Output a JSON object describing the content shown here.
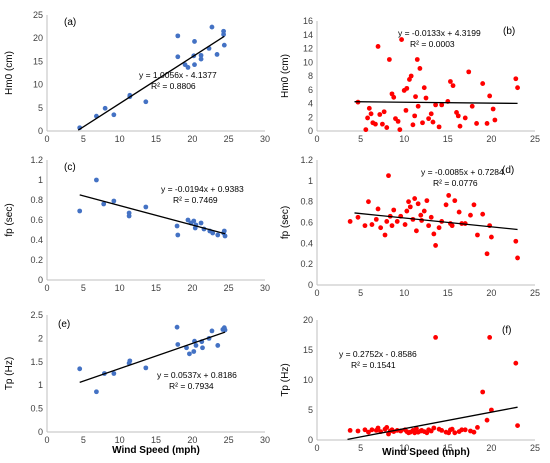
{
  "chart_data": [
    {
      "id": "a",
      "type": "scatter",
      "panel_label": "(a)",
      "ylabel": "Hm0 (cm)",
      "xlabel": "",
      "xlim": [
        0,
        30
      ],
      "ylim": [
        0,
        25
      ],
      "xticks": [
        0,
        5,
        10,
        15,
        20,
        25,
        30
      ],
      "yticks": [
        0,
        5,
        10,
        15,
        20,
        25
      ],
      "color": "#4472c4",
      "equation": "y = 1.0056x - 4.1377",
      "r2": "R² = 0.8806",
      "trend": {
        "slope": 1.0056,
        "intercept": -4.1377,
        "x_range": [
          4.3,
          24.4
        ]
      },
      "points": [
        [
          4.5,
          0.7
        ],
        [
          6.8,
          3.2
        ],
        [
          8.0,
          4.9
        ],
        [
          9.2,
          3.5
        ],
        [
          11.4,
          7.7
        ],
        [
          11.4,
          7.4
        ],
        [
          13.6,
          6.3
        ],
        [
          18.0,
          20.5
        ],
        [
          18.0,
          16.0
        ],
        [
          19.0,
          14.3
        ],
        [
          19.4,
          13.7
        ],
        [
          20.3,
          14.3
        ],
        [
          20.2,
          16.2
        ],
        [
          20.3,
          19.3
        ],
        [
          21.2,
          16.3
        ],
        [
          21.2,
          15.5
        ],
        [
          22.3,
          17.8
        ],
        [
          22.7,
          22.4
        ],
        [
          23.4,
          16.5
        ],
        [
          24.3,
          21.5
        ],
        [
          24.3,
          20.8
        ],
        [
          24.4,
          18.5
        ]
      ]
    },
    {
      "id": "b",
      "type": "scatter",
      "panel_label": "(b)",
      "ylabel": "Hm0 (cm)",
      "xlabel": "",
      "xlim": [
        0,
        25
      ],
      "ylim": [
        0,
        16
      ],
      "xticks": [
        0,
        5,
        10,
        15,
        20,
        25
      ],
      "yticks": [
        0,
        2,
        4,
        6,
        8,
        10,
        12,
        14,
        16
      ],
      "color": "#ff0000",
      "equation": "y = -0.0133x + 4.3199",
      "r2": "R² = 0.0003",
      "trend": {
        "slope": -0.0133,
        "intercept": 4.3199,
        "x_range": [
          4.3,
          23
        ]
      },
      "points": [
        [
          4.7,
          4.2
        ],
        [
          5.6,
          0.2
        ],
        [
          5.8,
          1.9
        ],
        [
          6.0,
          3.3
        ],
        [
          6.2,
          2.5
        ],
        [
          6.4,
          1.2
        ],
        [
          6.7,
          1.0
        ],
        [
          7.0,
          12.3
        ],
        [
          7.2,
          2.4
        ],
        [
          7.5,
          1.0
        ],
        [
          7.7,
          2.8
        ],
        [
          8.0,
          0.5
        ],
        [
          8.3,
          10.4
        ],
        [
          8.6,
          5.4
        ],
        [
          8.8,
          4.9
        ],
        [
          9.0,
          1.8
        ],
        [
          9.3,
          1.4
        ],
        [
          9.5,
          0.2
        ],
        [
          9.7,
          13.3
        ],
        [
          10.0,
          5.9
        ],
        [
          10.2,
          3.0
        ],
        [
          10.3,
          6.2
        ],
        [
          10.6,
          7.5
        ],
        [
          10.8,
          8.0
        ],
        [
          11.0,
          0.9
        ],
        [
          11.2,
          2.2
        ],
        [
          11.3,
          5.0
        ],
        [
          11.5,
          10.4
        ],
        [
          11.6,
          3.6
        ],
        [
          11.8,
          9.1
        ],
        [
          12.1,
          1.2
        ],
        [
          12.3,
          6.3
        ],
        [
          12.5,
          4.8
        ],
        [
          12.8,
          1.8
        ],
        [
          13.1,
          2.5
        ],
        [
          13.3,
          1.3
        ],
        [
          13.6,
          3.8
        ],
        [
          14.0,
          0.6
        ],
        [
          14.3,
          3.8
        ],
        [
          15.0,
          4.3
        ],
        [
          15.3,
          7.2
        ],
        [
          15.6,
          6.6
        ],
        [
          16.0,
          2.7
        ],
        [
          16.2,
          2.2
        ],
        [
          16.4,
          0.7
        ],
        [
          17.0,
          1.9
        ],
        [
          17.4,
          8.6
        ],
        [
          17.8,
          3.6
        ],
        [
          18.3,
          1.1
        ],
        [
          19.0,
          6.9
        ],
        [
          19.5,
          1.1
        ],
        [
          19.8,
          5.1
        ],
        [
          20.2,
          3.2
        ],
        [
          20.4,
          1.6
        ],
        [
          22.8,
          7.6
        ],
        [
          23.0,
          6.3
        ]
      ]
    },
    {
      "id": "c",
      "type": "scatter",
      "panel_label": "(c)",
      "ylabel": "fp (sec)",
      "xlabel": "",
      "xlim": [
        0,
        30
      ],
      "ylim": [
        0,
        1.2
      ],
      "xticks": [
        0,
        5,
        10,
        15,
        20,
        25,
        30
      ],
      "yticks": [
        0,
        0.2,
        0.4,
        0.6,
        0.8,
        1,
        1.2
      ],
      "color": "#4472c4",
      "equation": "y = -0.0194x + 0.9383",
      "r2": "R² = 0.7469",
      "trend": {
        "slope": -0.0194,
        "intercept": 0.9383,
        "x_range": [
          4.5,
          24.5
        ]
      },
      "points": [
        [
          4.5,
          0.69
        ],
        [
          6.8,
          1.0
        ],
        [
          7.8,
          0.76
        ],
        [
          9.2,
          0.79
        ],
        [
          11.3,
          0.67
        ],
        [
          11.3,
          0.64
        ],
        [
          13.6,
          0.73
        ],
        [
          17.9,
          0.54
        ],
        [
          18.0,
          0.45
        ],
        [
          19.4,
          0.6
        ],
        [
          19.8,
          0.57
        ],
        [
          20.2,
          0.59
        ],
        [
          20.5,
          0.55
        ],
        [
          20.4,
          0.52
        ],
        [
          21.2,
          0.57
        ],
        [
          21.6,
          0.51
        ],
        [
          22.4,
          0.49
        ],
        [
          22.8,
          0.47
        ],
        [
          23.5,
          0.45
        ],
        [
          24.3,
          0.47
        ],
        [
          24.5,
          0.44
        ],
        [
          24.4,
          0.49
        ]
      ]
    },
    {
      "id": "d",
      "type": "scatter",
      "panel_label": "(d)",
      "ylabel": "fp (sec)",
      "xlabel": "",
      "xlim": [
        0,
        25
      ],
      "ylim": [
        0,
        1.2
      ],
      "xticks": [
        0,
        5,
        10,
        15,
        20,
        25
      ],
      "yticks": [
        0,
        0.2,
        0.4,
        0.6,
        0.8,
        1,
        1.2
      ],
      "color": "#ff0000",
      "equation": "y = -0.0085x + 0.7284",
      "r2": "R² = 0.0776",
      "trend": {
        "slope": -0.0085,
        "intercept": 0.7284,
        "x_range": [
          4.3,
          23
        ]
      },
      "points": [
        [
          3.8,
          0.61
        ],
        [
          4.7,
          0.65
        ],
        [
          5.5,
          0.57
        ],
        [
          5.9,
          0.8
        ],
        [
          6.3,
          0.58
        ],
        [
          6.8,
          0.63
        ],
        [
          7.0,
          0.73
        ],
        [
          7.3,
          0.55
        ],
        [
          7.8,
          0.48
        ],
        [
          8.0,
          0.61
        ],
        [
          8.2,
          1.05
        ],
        [
          8.4,
          0.66
        ],
        [
          8.6,
          0.57
        ],
        [
          8.8,
          0.72
        ],
        [
          9.2,
          0.61
        ],
        [
          9.6,
          0.66
        ],
        [
          10.1,
          0.58
        ],
        [
          10.3,
          0.71
        ],
        [
          10.5,
          0.8
        ],
        [
          10.7,
          0.75
        ],
        [
          11.0,
          0.63
        ],
        [
          11.2,
          0.83
        ],
        [
          11.4,
          0.52
        ],
        [
          11.6,
          0.78
        ],
        [
          11.9,
          0.67
        ],
        [
          12.0,
          0.62
        ],
        [
          12.3,
          0.71
        ],
        [
          12.6,
          0.81
        ],
        [
          12.8,
          0.57
        ],
        [
          13.1,
          0.65
        ],
        [
          13.4,
          0.49
        ],
        [
          13.6,
          0.38
        ],
        [
          14.0,
          0.55
        ],
        [
          14.3,
          0.61
        ],
        [
          14.8,
          0.77
        ],
        [
          15.1,
          0.86
        ],
        [
          15.3,
          0.59
        ],
        [
          15.5,
          0.57
        ],
        [
          15.8,
          0.81
        ],
        [
          16.3,
          0.7
        ],
        [
          16.6,
          0.59
        ],
        [
          17.0,
          0.59
        ],
        [
          17.6,
          0.67
        ],
        [
          18.0,
          0.77
        ],
        [
          18.4,
          0.48
        ],
        [
          19.0,
          0.68
        ],
        [
          19.5,
          0.3
        ],
        [
          19.8,
          0.57
        ],
        [
          20.0,
          0.46
        ],
        [
          22.8,
          0.42
        ],
        [
          23.0,
          0.26
        ]
      ]
    },
    {
      "id": "e",
      "type": "scatter",
      "panel_label": "(e)",
      "ylabel": "Tp  (Hz)",
      "xlabel": "Wind Speed (mph)",
      "xlim": [
        0,
        30
      ],
      "ylim": [
        0,
        2.5
      ],
      "xticks": [
        0,
        5,
        10,
        15,
        20,
        25,
        30
      ],
      "yticks": [
        0,
        0.5,
        1,
        1.5,
        2,
        2.5
      ],
      "color": "#4472c4",
      "equation": "y = 0.0537x + 0.8186",
      "r2": "R² = 0.7934",
      "trend": {
        "slope": 0.0537,
        "intercept": 0.8186,
        "x_range": [
          4.5,
          24.5
        ]
      },
      "points": [
        [
          4.5,
          1.35
        ],
        [
          6.8,
          0.86
        ],
        [
          7.9,
          1.25
        ],
        [
          9.2,
          1.25
        ],
        [
          11.3,
          1.47
        ],
        [
          11.4,
          1.52
        ],
        [
          13.6,
          1.37
        ],
        [
          17.9,
          2.24
        ],
        [
          18.0,
          1.87
        ],
        [
          19.2,
          1.8
        ],
        [
          19.6,
          1.67
        ],
        [
          20.2,
          1.72
        ],
        [
          20.3,
          1.94
        ],
        [
          20.5,
          1.85
        ],
        [
          21.3,
          1.93
        ],
        [
          21.4,
          1.8
        ],
        [
          22.3,
          2.0
        ],
        [
          22.7,
          2.16
        ],
        [
          23.5,
          1.85
        ],
        [
          24.2,
          2.19
        ],
        [
          24.4,
          2.23
        ],
        [
          24.5,
          2.18
        ]
      ]
    },
    {
      "id": "f",
      "type": "scatter",
      "panel_label": "(f)",
      "ylabel": "Tp  (Hz)",
      "xlabel": "Wind Speed (mph)",
      "xlim": [
        0,
        25
      ],
      "ylim": [
        0,
        20
      ],
      "xticks": [
        0,
        5,
        10,
        15,
        20,
        25
      ],
      "yticks": [
        0,
        5,
        10,
        15,
        20
      ],
      "color": "#ff0000",
      "equation": "y = 0.2752x - 0.8586",
      "r2": "R² = 0.1541",
      "trend": {
        "slope": 0.2752,
        "intercept": -0.8586,
        "x_range": [
          3.5,
          23
        ]
      },
      "points": [
        [
          3.8,
          1.6
        ],
        [
          4.7,
          1.5
        ],
        [
          5.5,
          1.7
        ],
        [
          5.9,
          1.3
        ],
        [
          6.3,
          1.7
        ],
        [
          6.8,
          1.6
        ],
        [
          7.0,
          2.0
        ],
        [
          7.3,
          1.4
        ],
        [
          7.8,
          1.8
        ],
        [
          8.0,
          2.1
        ],
        [
          8.2,
          1.0
        ],
        [
          8.4,
          1.5
        ],
        [
          8.6,
          1.7
        ],
        [
          8.8,
          1.4
        ],
        [
          9.2,
          1.6
        ],
        [
          9.6,
          1.5
        ],
        [
          10.1,
          1.7
        ],
        [
          10.3,
          1.4
        ],
        [
          10.5,
          1.2
        ],
        [
          10.7,
          1.3
        ],
        [
          11.0,
          1.6
        ],
        [
          11.2,
          1.2
        ],
        [
          11.4,
          1.9
        ],
        [
          11.6,
          1.3
        ],
        [
          11.9,
          1.5
        ],
        [
          12.0,
          1.6
        ],
        [
          12.3,
          1.4
        ],
        [
          12.6,
          1.2
        ],
        [
          12.8,
          1.7
        ],
        [
          13.1,
          1.5
        ],
        [
          13.4,
          2.0
        ],
        [
          13.6,
          17.1
        ],
        [
          14.0,
          1.8
        ],
        [
          14.3,
          1.6
        ],
        [
          14.8,
          1.3
        ],
        [
          15.1,
          1.2
        ],
        [
          15.3,
          1.7
        ],
        [
          15.5,
          1.8
        ],
        [
          15.8,
          1.2
        ],
        [
          16.3,
          1.4
        ],
        [
          16.6,
          1.7
        ],
        [
          17.0,
          1.7
        ],
        [
          17.6,
          1.5
        ],
        [
          18.0,
          1.3
        ],
        [
          18.4,
          2.1
        ],
        [
          19.0,
          8.0
        ],
        [
          19.5,
          3.3
        ],
        [
          19.8,
          17.1
        ],
        [
          20.0,
          5.0
        ],
        [
          22.8,
          12.8
        ],
        [
          23.0,
          2.4
        ]
      ]
    }
  ]
}
